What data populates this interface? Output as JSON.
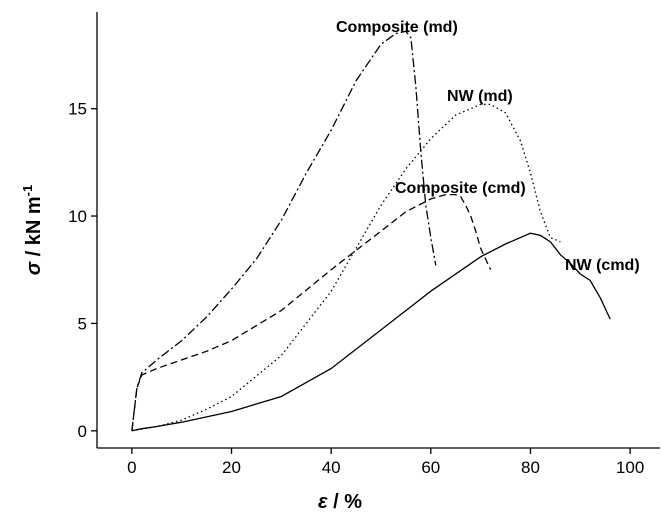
{
  "chart_data": {
    "type": "line",
    "xlabel": {
      "symbol": "ε",
      "unit": " / %"
    },
    "ylabel": {
      "symbol": "σ",
      "unit": " / kN m",
      "exponent": "-1"
    },
    "xlim": [
      -7,
      106
    ],
    "xticks": [
      0,
      20,
      40,
      60,
      80,
      100
    ],
    "ylim": [
      -0.8,
      19.5
    ],
    "yticks": [
      0,
      5,
      10,
      15
    ],
    "series": [
      {
        "name": "Composite (md)",
        "color": "#000000",
        "dash": "9 3 2 3",
        "x": [
          0,
          1,
          2,
          5,
          10,
          15,
          20,
          25,
          30,
          35,
          40,
          45,
          50,
          53,
          55,
          56,
          57,
          58,
          59,
          60,
          61
        ],
        "values": [
          0,
          2,
          2.7,
          3.3,
          4.2,
          5.3,
          6.6,
          8,
          9.8,
          12,
          14,
          16.3,
          18,
          18.5,
          18.6,
          18.3,
          16,
          13,
          10.5,
          9,
          7.7
        ]
      },
      {
        "name": "NW (md)",
        "color": "#000000",
        "dash": "1.5 3",
        "x": [
          0,
          5,
          10,
          15,
          20,
          30,
          40,
          50,
          55,
          60,
          65,
          70,
          72,
          75,
          78,
          80,
          82,
          84,
          86
        ],
        "values": [
          0,
          0.2,
          0.5,
          1,
          1.6,
          3.5,
          6.5,
          10.5,
          12.2,
          13.6,
          14.7,
          15.2,
          15.2,
          14.8,
          13.5,
          12,
          10.2,
          9,
          8.8
        ]
      },
      {
        "name": "Composite (cmd)",
        "color": "#000000",
        "dash": "7 4",
        "x": [
          0,
          1,
          2,
          5,
          10,
          15,
          20,
          30,
          40,
          50,
          55,
          60,
          63,
          65,
          66,
          67,
          68,
          69,
          70,
          71,
          72
        ],
        "values": [
          0,
          2,
          2.6,
          2.9,
          3.3,
          3.7,
          4.2,
          5.6,
          7.5,
          9.3,
          10.2,
          10.8,
          11,
          11,
          10.9,
          10.5,
          10,
          9.3,
          8.5,
          8,
          7.5
        ]
      },
      {
        "name": "NW (cmd)",
        "color": "#000000",
        "dash": "none",
        "x": [
          0,
          2,
          5,
          10,
          20,
          30,
          40,
          50,
          60,
          70,
          75,
          80,
          82,
          84,
          86,
          88,
          90,
          92,
          94,
          96
        ],
        "values": [
          0,
          0.1,
          0.2,
          0.4,
          0.9,
          1.6,
          2.9,
          4.7,
          6.5,
          8.1,
          8.7,
          9.2,
          9.1,
          8.8,
          8.2,
          7.8,
          7.3,
          7,
          6.2,
          5.2
        ]
      }
    ]
  }
}
